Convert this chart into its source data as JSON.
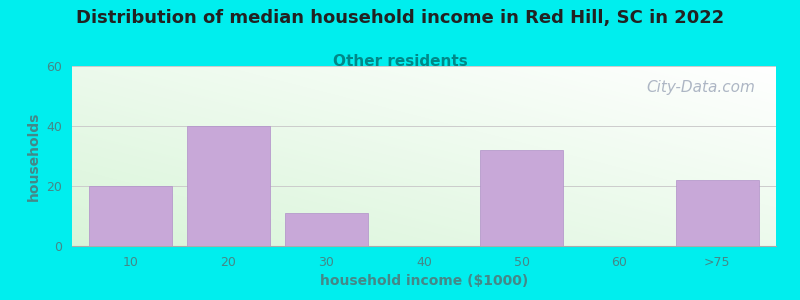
{
  "title": "Distribution of median household income in Red Hill, SC in 2022",
  "subtitle": "Other residents",
  "xlabel": "household income ($1000)",
  "ylabel": "households",
  "background_color": "#00EEEE",
  "plot_bg_top_left": "#d8f0d8",
  "plot_bg_bottom_right": "#ffffff",
  "bar_color": "#c8a8d8",
  "bar_edge_color": "#b090c8",
  "categories": [
    "10",
    "20",
    "30",
    "40",
    "50",
    "60",
    ">75"
  ],
  "values": [
    20,
    40,
    11,
    0,
    32,
    0,
    22
  ],
  "ylim": [
    0,
    60
  ],
  "yticks": [
    0,
    20,
    40,
    60
  ],
  "bar_width": 0.85,
  "title_fontsize": 13,
  "subtitle_fontsize": 11,
  "title_color": "#222222",
  "subtitle_color": "#008888",
  "axis_label_fontsize": 10,
  "tick_fontsize": 9,
  "tick_color": "#448888",
  "watermark": "City-Data.com",
  "watermark_color": "#a0aabb",
  "watermark_fontsize": 11,
  "grid_color": "#cccccc",
  "spine_color": "#aaaaaa"
}
